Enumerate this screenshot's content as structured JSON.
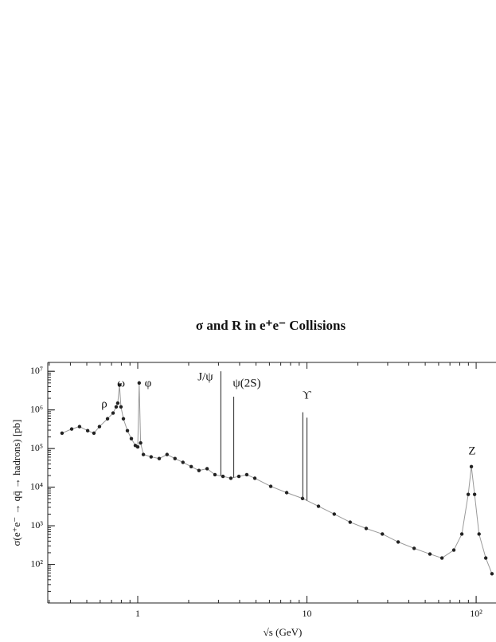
{
  "chart_data": {
    "type": "scatter",
    "title": "σ and R in e⁺e⁻ Collisions",
    "x_label": "√s (GeV)",
    "y_label": "σ(e⁺e⁻ → qq̄ → hadrons)  [pb]",
    "log_x": true,
    "log_y": true,
    "xlim": [
      0.294,
      131
    ],
    "ylim": [
      10,
      17000000
    ],
    "xticks": [
      1,
      10,
      {
        "value": 100,
        "label": "10²"
      }
    ],
    "yticks": [
      {
        "value": 100,
        "label": "10²"
      },
      {
        "value": 1000,
        "label": "10³"
      },
      {
        "value": 10000,
        "label": "10⁴"
      },
      {
        "value": 100000,
        "label": "10⁵"
      },
      {
        "value": 1000000,
        "label": "10⁶"
      },
      {
        "value": 10000000,
        "label": "10⁷"
      }
    ],
    "color": "#222222",
    "x": [
      0.357,
      0.407,
      0.453,
      0.506,
      0.551,
      0.594,
      0.663,
      0.715,
      0.746,
      0.762,
      0.78,
      0.796,
      0.823,
      0.869,
      0.917,
      0.968,
      1.0,
      1.02,
      1.04,
      1.08,
      1.2,
      1.34,
      1.49,
      1.66,
      1.85,
      2.07,
      2.3,
      2.57,
      2.86,
      3.19,
      3.55,
      3.96,
      4.41,
      4.92,
      6.11,
      7.59,
      9.42,
      11.7,
      14.5,
      18.0,
      22.4,
      27.9,
      34.6,
      43.0,
      53.3,
      62.8,
      73.8,
      82.3,
      89.8,
      93.7,
      97.9,
      104,
      114,
      124
    ],
    "values": [
      250000,
      320000,
      370000,
      290000,
      250000,
      370000,
      590000,
      830000,
      1200000,
      1500000,
      4400000,
      1200000,
      590000,
      290000,
      180000,
      120000,
      110000,
      5000000,
      140000,
      70000,
      61000,
      55000,
      70000,
      55000,
      44000,
      34000,
      27000,
      30000,
      21000,
      19000,
      17000,
      19000,
      21000,
      17000,
      10500,
      7200,
      5100,
      3200,
      2000,
      1240,
      850,
      610,
      380,
      260,
      185,
      146,
      235,
      610,
      6500,
      34000,
      6500,
      610,
      146,
      57
    ],
    "annotations": [
      "ρ",
      "ω",
      "φ",
      "J/ψ",
      "ψ(2S)",
      "ϒ",
      "Z"
    ],
    "spikes": {
      "x": [
        3.1,
        3.69,
        9.46,
        10.0
      ],
      "values": [
        10000000,
        2200000,
        870000,
        630000
      ],
      "color": "#444444"
    }
  }
}
